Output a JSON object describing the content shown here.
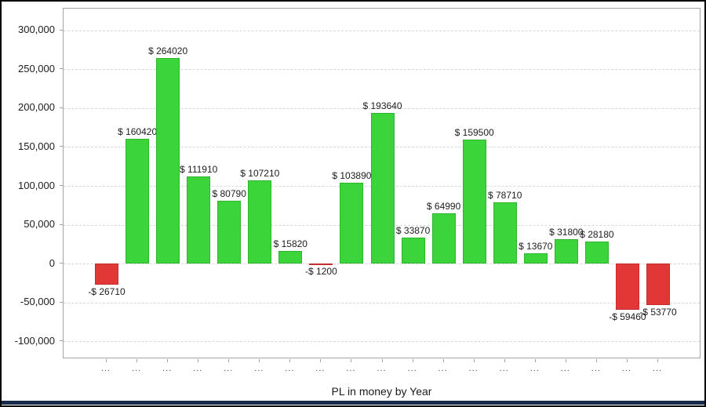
{
  "window": {
    "title": "PL in money by Year"
  },
  "colors": {
    "positive_bar": "#3bd43b",
    "negative_bar": "#e23737",
    "grid": "#d7d7d7",
    "axis": "#a3a3a3",
    "text": "#1c1c1c",
    "bottom_band": "#17294d"
  },
  "chart_data": {
    "type": "bar",
    "title": "PL in money by Year",
    "xlabel": "Year",
    "ylabel": "PL in money",
    "grid": true,
    "legend": "none",
    "categories": [
      "...",
      "...",
      "...",
      "...",
      "...",
      "...",
      "...",
      "...",
      "...",
      "...",
      "...",
      "...",
      "...",
      "...",
      "...",
      "...",
      "...",
      "...",
      "..."
    ],
    "values": [
      -26710,
      160420,
      264020,
      111910,
      80790,
      107210,
      15820,
      -1200,
      103890,
      193640,
      33870,
      64990,
      159500,
      78710,
      13670,
      31800,
      28180,
      -59460,
      -53770
    ],
    "point_labels": [
      "-$ 26710",
      "$ 160420",
      "$ 264020",
      "$ 111910",
      "$ 80790",
      "$ 107210",
      "$ 15820",
      "-$ 1200",
      "$ 103890",
      "$ 193640",
      "$ 33870",
      "$ 64990",
      "$ 159500",
      "$ 78710",
      "$ 13670",
      "$ 31800",
      "$ 28180",
      "-$ 59460",
      "-$ 53770"
    ],
    "yticks": [
      300000,
      250000,
      200000,
      150000,
      100000,
      50000,
      0,
      -50000,
      -100000
    ],
    "ytick_labels": [
      "300,000",
      "250,000",
      "200,000",
      "150,000",
      "100,000",
      "50,000",
      "0",
      "-50,000",
      "-100,000"
    ],
    "ylim": [
      -123000,
      328000
    ],
    "positive_color": "#3bd43b",
    "negative_color": "#e23737"
  }
}
